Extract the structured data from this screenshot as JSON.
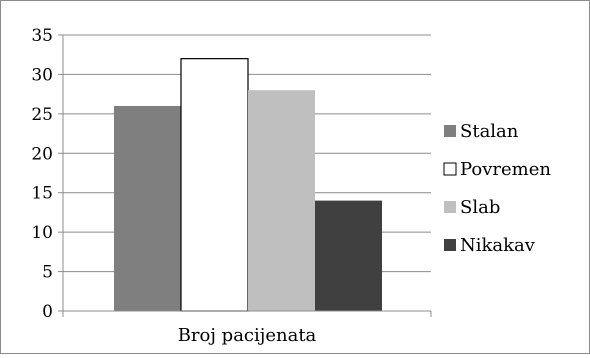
{
  "chart_data": {
    "type": "bar",
    "categories": [
      "Broj pacijenata"
    ],
    "series": [
      {
        "name": "Stalan",
        "values": [
          26
        ],
        "color": "#7f7f7f"
      },
      {
        "name": "Povremen",
        "values": [
          32
        ],
        "color": "#ffffff"
      },
      {
        "name": "Slab",
        "values": [
          28
        ],
        "color": "#bfbfbf"
      },
      {
        "name": "Nikakav",
        "values": [
          14
        ],
        "color": "#404040"
      }
    ],
    "ylim": [
      0,
      35
    ],
    "yticks": [
      0,
      5,
      10,
      15,
      20,
      25,
      30,
      35
    ],
    "grid": true,
    "legend": "right"
  }
}
